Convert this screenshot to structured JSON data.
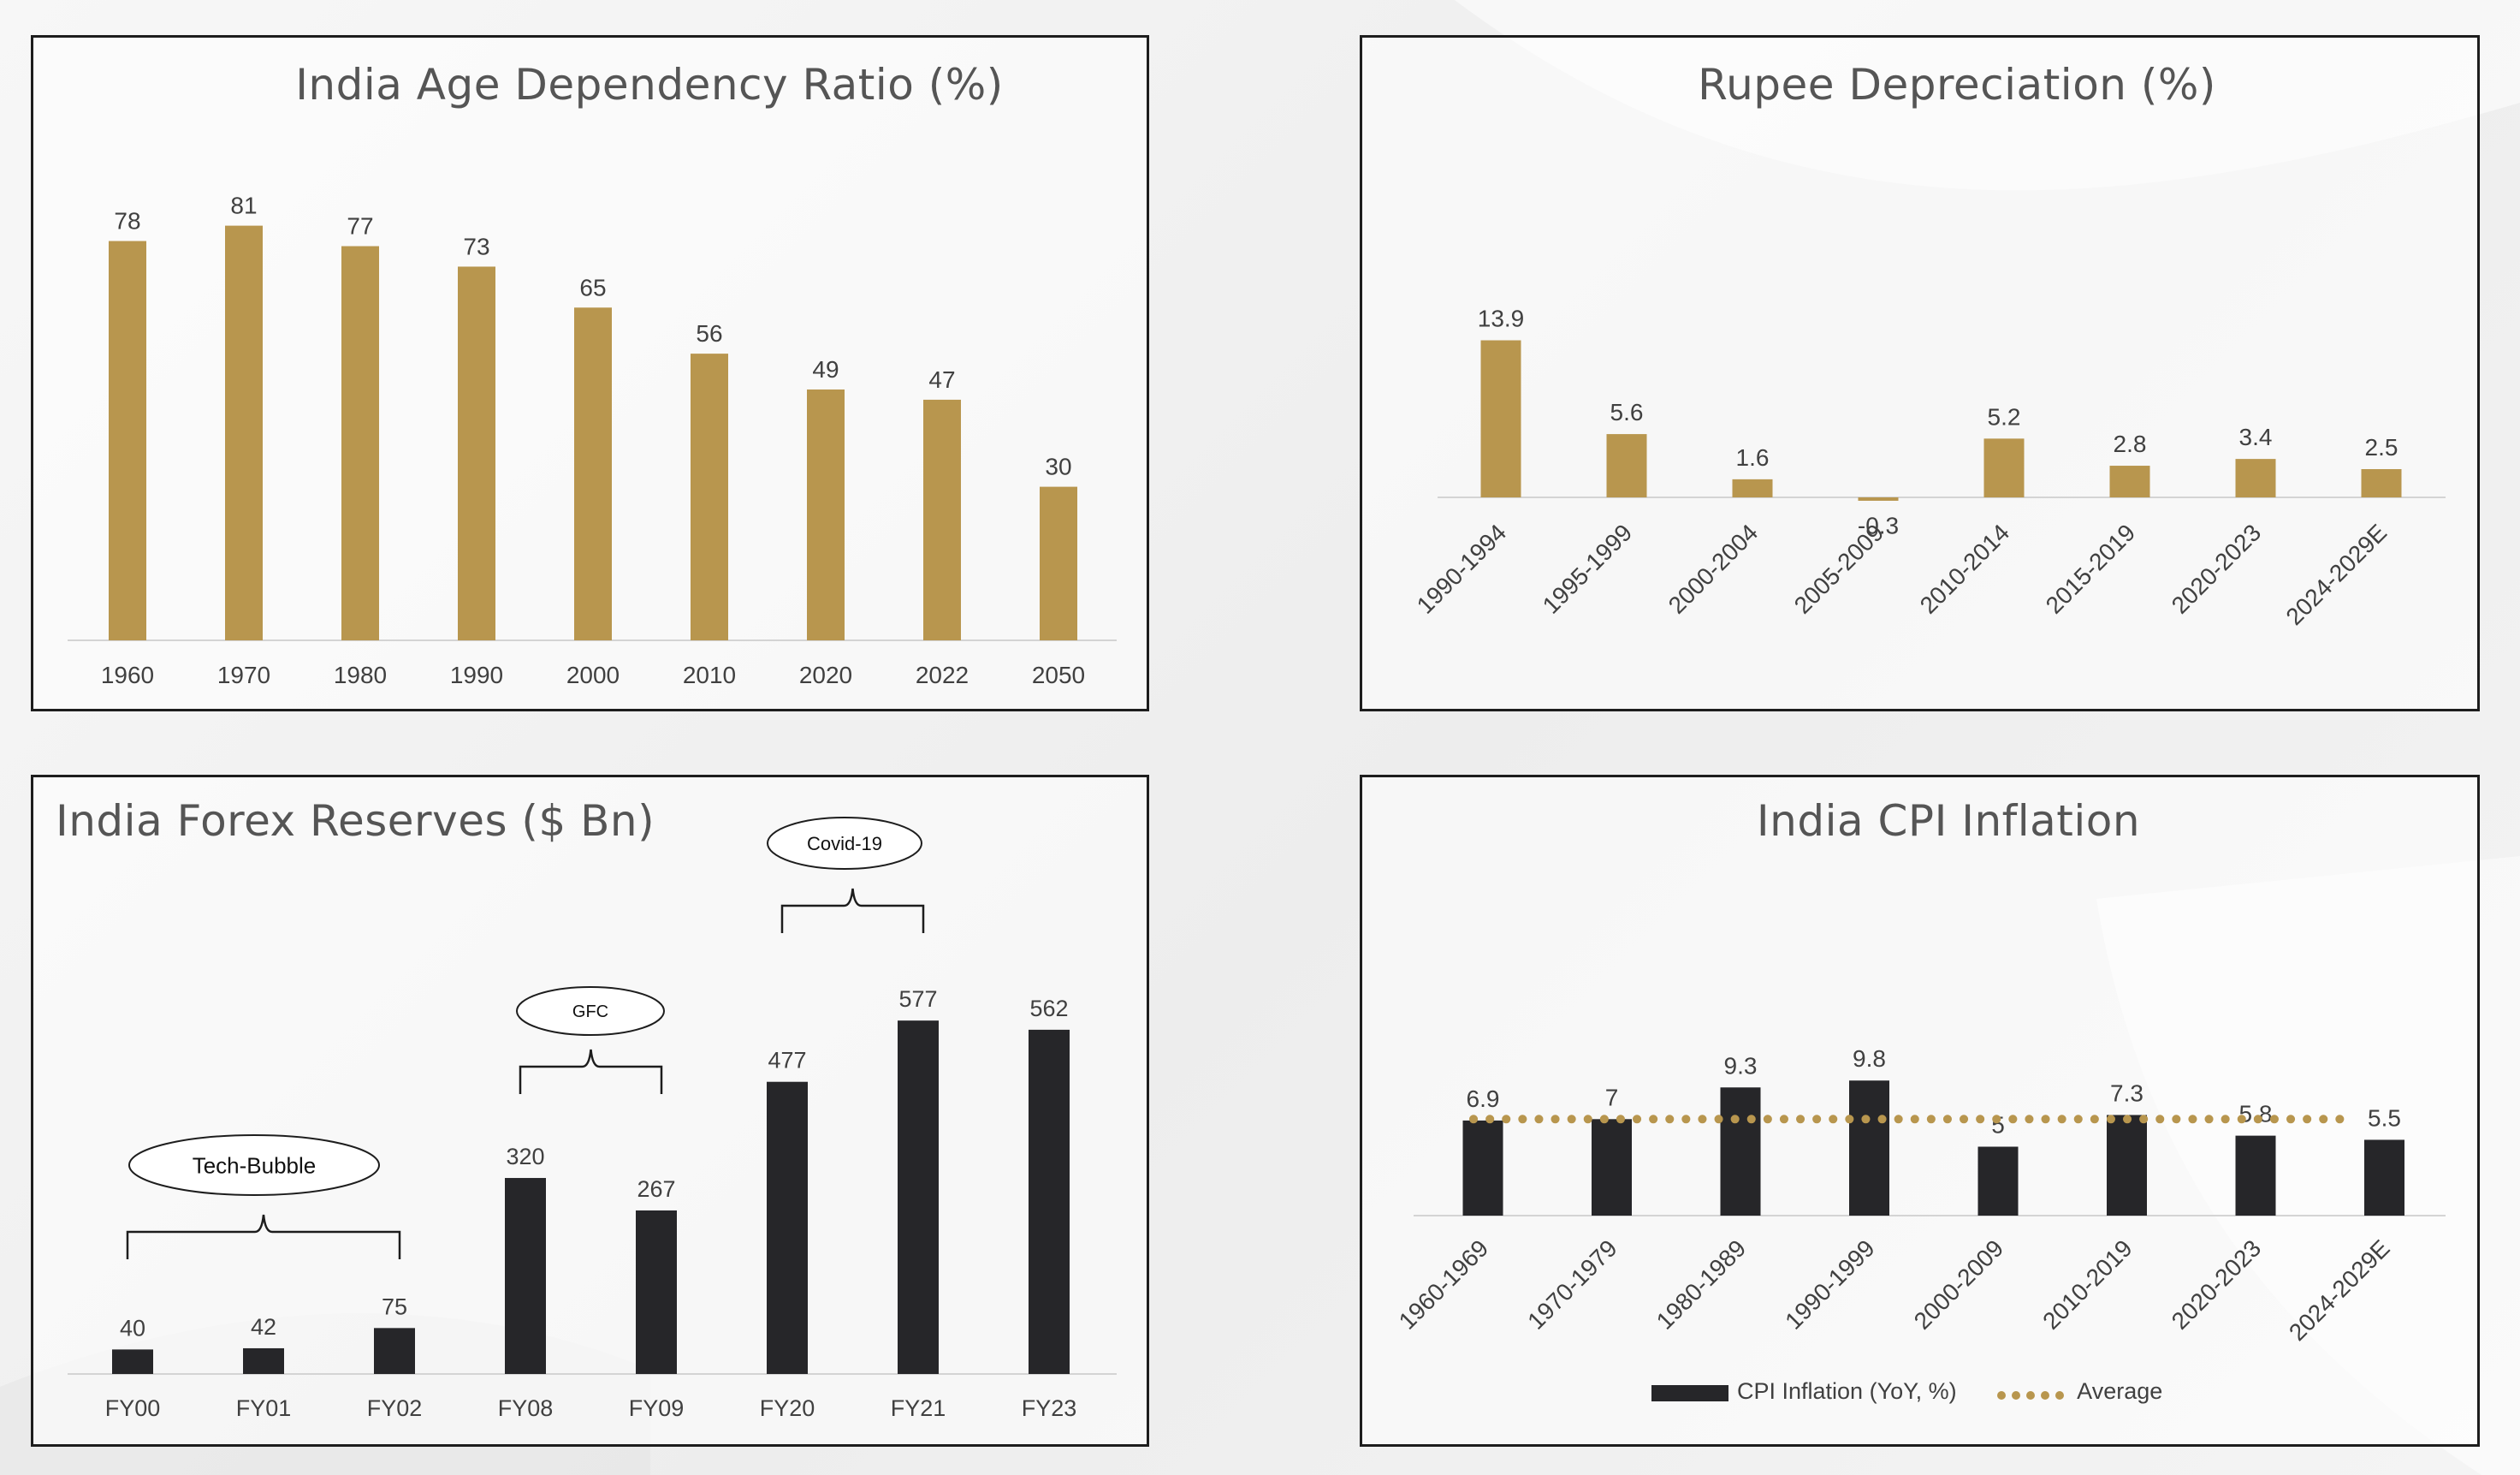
{
  "colors": {
    "gold": "#b8964e",
    "dark": "#262629",
    "axis": "#d4d4d4",
    "label": "#404040",
    "title": "#555555"
  },
  "panels": [
    {
      "title": "India Age Dependency Ratio (%)"
    },
    {
      "title": "Rupee Depreciation (%)"
    },
    {
      "title": "India Forex Reserves ($ Bn)"
    },
    {
      "title": "India CPI Inflation"
    }
  ],
  "chart_data": [
    {
      "type": "bar",
      "title": "India Age Dependency Ratio (%)",
      "categories": [
        "1960",
        "1970",
        "1980",
        "1990",
        "2000",
        "2010",
        "2020",
        "2022",
        "2050"
      ],
      "values": [
        78,
        81,
        77,
        73,
        65,
        56,
        49,
        47,
        30
      ],
      "ylim": [
        0,
        85
      ],
      "grid": false,
      "data_labels": true,
      "color": "#b8964e"
    },
    {
      "type": "bar",
      "title": "Rupee Depreciation (%)",
      "categories": [
        "1990-1994",
        "1995-1999",
        "2000-2004",
        "2005-2009",
        "2010-2014",
        "2015-2019",
        "2020-2023",
        "2024-2029E"
      ],
      "values": [
        13.9,
        5.6,
        1.6,
        -0.3,
        5.2,
        2.8,
        3.4,
        2.5
      ],
      "ylim": [
        -1,
        15
      ],
      "grid": false,
      "data_labels": true,
      "color": "#b8964e"
    },
    {
      "type": "bar",
      "title": "India Forex Reserves ($ Bn)",
      "categories": [
        "FY00",
        "FY01",
        "FY02",
        "FY08",
        "FY09",
        "FY20",
        "FY21",
        "FY23"
      ],
      "values": [
        40,
        42,
        75,
        320,
        267,
        477,
        577,
        562
      ],
      "ylim": [
        0,
        600
      ],
      "grid": false,
      "data_labels": true,
      "color": "#262629",
      "annotations": [
        {
          "text": "Tech-Bubble",
          "from": 0,
          "to": 2
        },
        {
          "text": "GFC",
          "from": 3,
          "to": 4
        },
        {
          "text": "Covid-19",
          "from": 5,
          "to": 6
        }
      ]
    },
    {
      "type": "bar",
      "title": "India CPI Inflation",
      "categories": [
        "1960-1969",
        "1970-1979",
        "1980-1989",
        "1990-1999",
        "2000-2009",
        "2010-2019",
        "2020-2023",
        "2024-2029E"
      ],
      "series": [
        {
          "name": "CPI Inflation (YoY, %)",
          "type": "bar",
          "values": [
            6.9,
            7,
            9.3,
            9.8,
            5,
            7.3,
            5.8,
            5.5
          ],
          "color": "#262629"
        },
        {
          "name": "Average",
          "type": "line",
          "style": "dotted",
          "value": 7.0,
          "color": "#b8964e"
        }
      ],
      "ylim": [
        0,
        10.5
      ],
      "grid": false,
      "data_labels": true,
      "legend": "bottom"
    }
  ]
}
